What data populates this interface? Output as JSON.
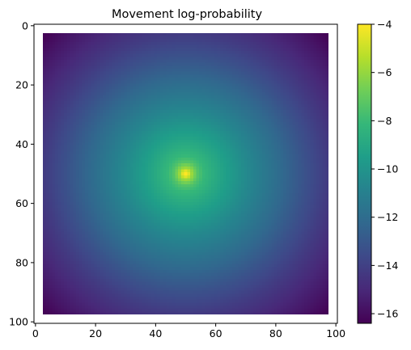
{
  "chart_data": {
    "type": "heatmap",
    "title": "Movement log-probability",
    "xlabel": "",
    "ylabel": "",
    "grid_size": 101,
    "value_field": "log-probability centered at (50, 50), nonzero on interior cells 3–97",
    "center": [
      50,
      50
    ],
    "valid_range": [
      3,
      97
    ],
    "xlim": [
      0,
      100
    ],
    "ylim": [
      100,
      0
    ],
    "x_ticks": [
      0,
      20,
      40,
      60,
      80,
      100
    ],
    "y_ticks": [
      0,
      20,
      40,
      60,
      80,
      100
    ],
    "x_tick_labels": [
      "0",
      "20",
      "40",
      "60",
      "80",
      "100"
    ],
    "y_tick_labels": [
      "0",
      "20",
      "40",
      "60",
      "80",
      "100"
    ],
    "profile": {
      "distance": [
        0,
        1,
        2,
        4,
        6,
        10,
        20,
        30,
        40,
        47,
        55,
        60,
        66
      ],
      "value": [
        -4.0,
        -4.6,
        -5.9,
        -7.4,
        -8.1,
        -8.9,
        -10.5,
        -11.9,
        -13.3,
        -14.2,
        -15.1,
        -15.6,
        -16.3
      ]
    },
    "colorbar": {
      "colormap": "viridis",
      "vmin": -16.4,
      "vmax": -4.0,
      "ticks": [
        -16,
        -14,
        -12,
        -10,
        -8,
        -6,
        -4
      ],
      "tick_labels": [
        "−16",
        "−14",
        "−12",
        "−10",
        "−8",
        "−6",
        "−4"
      ]
    },
    "colors": {
      "viridis": [
        "#440154",
        "#482878",
        "#3e4989",
        "#31688e",
        "#26828e",
        "#1f9e89",
        "#35b779",
        "#6ece58",
        "#b5de2b",
        "#fde725"
      ]
    }
  }
}
